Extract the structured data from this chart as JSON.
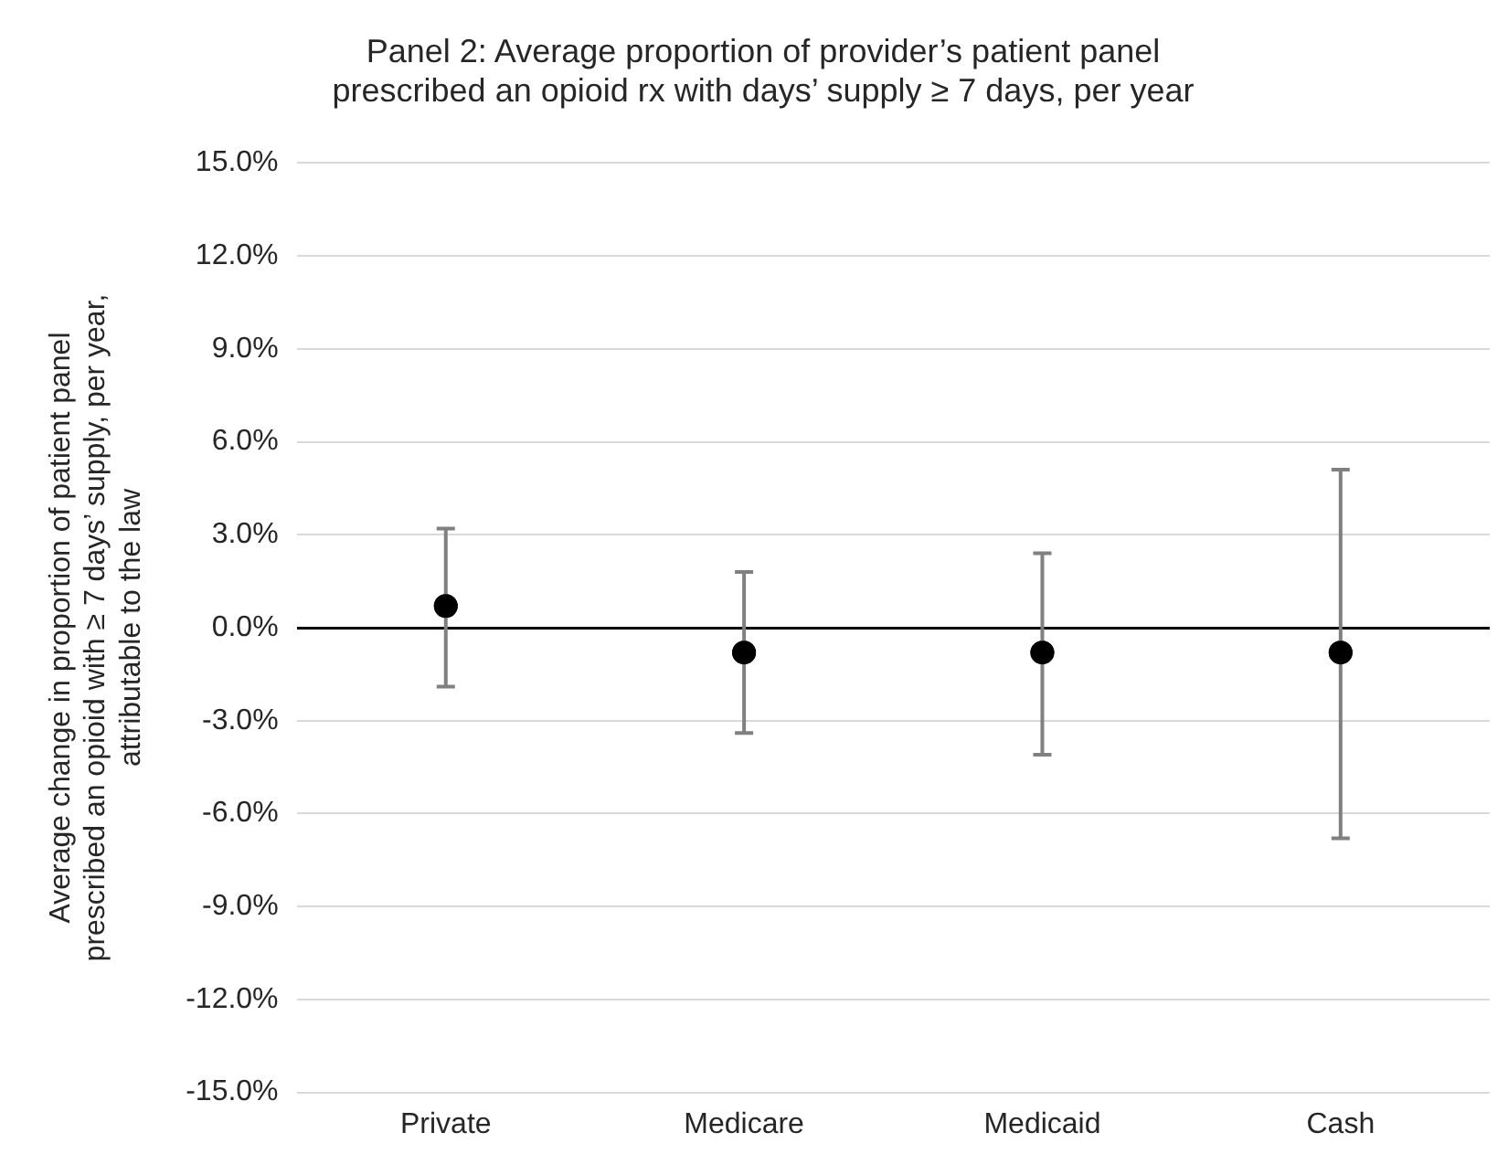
{
  "chart_data": {
    "type": "scatter",
    "title": "Panel 2: Average proportion of provider’s patient panel\nprescribed an opioid rx with days’ supply ≥ 7 days, per year",
    "ylabel": "Average change in proportion of patient panel\nprescribed an opioid with ≥ 7 days’ supply, per year,\nattributable to the law",
    "categories": [
      "Private",
      "Medicare",
      "Medicaid",
      "Cash"
    ],
    "values": [
      0.7,
      -0.8,
      -0.8,
      -0.8
    ],
    "errors": [
      [
        -1.9,
        3.2
      ],
      [
        -3.4,
        1.8
      ],
      [
        -4.1,
        2.4
      ],
      [
        -6.8,
        5.1
      ]
    ],
    "color": "#000000",
    "marker": "circle",
    "grid": "y",
    "ylim": [
      -15,
      15
    ],
    "yticks": [
      {
        "value": -15,
        "label": "-15.0%"
      },
      {
        "value": -12,
        "label": "-12.0%"
      },
      {
        "value": -9,
        "label": "-9.0%"
      },
      {
        "value": -6,
        "label": "-6.0%"
      },
      {
        "value": -3,
        "label": "-3.0%"
      },
      {
        "value": 0,
        "label": "0.0%"
      },
      {
        "value": 3,
        "label": "3.0%"
      },
      {
        "value": 6,
        "label": "6.0%"
      },
      {
        "value": 9,
        "label": "9.0%"
      },
      {
        "value": 12,
        "label": "12.0%"
      },
      {
        "value": 15,
        "label": "15.0%"
      }
    ]
  }
}
